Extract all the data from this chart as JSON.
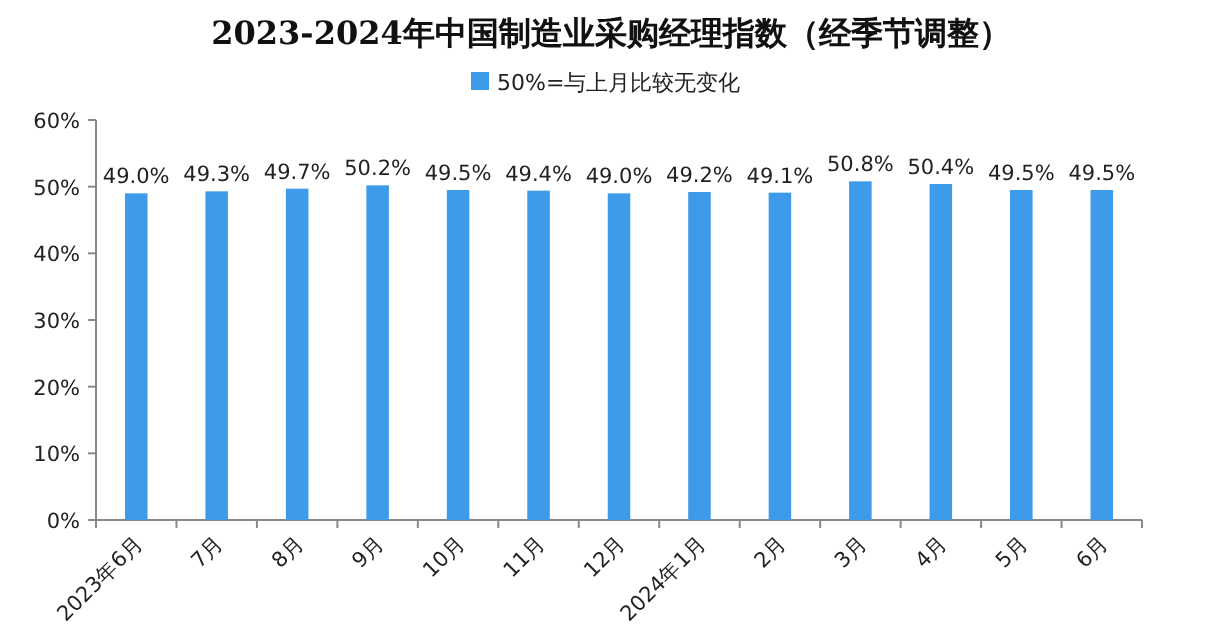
{
  "chart_data": {
    "type": "bar",
    "title": "2023-2024年中国制造业采购经理指数（经季节调整）",
    "categories": [
      "2023年6月",
      "7月",
      "8月",
      "9月",
      "10月",
      "11月",
      "12月",
      "2024年1月",
      "2月",
      "3月",
      "4月",
      "5月",
      "6月"
    ],
    "series": [
      {
        "name": "50%=与上月比较无变化",
        "color": "#3d9be9",
        "values": [
          49.0,
          49.3,
          49.7,
          50.2,
          49.5,
          49.4,
          49.0,
          49.2,
          49.1,
          50.8,
          50.4,
          49.5,
          49.5
        ],
        "value_labels": [
          "49.0%",
          "49.3%",
          "49.7%",
          "50.2%",
          "49.5%",
          "49.4%",
          "49.0%",
          "49.2%",
          "49.1%",
          "50.8%",
          "50.4%",
          "49.5%",
          "49.5%"
        ]
      }
    ],
    "ylim": [
      0,
      60
    ],
    "yticks": [
      {
        "value": 0,
        "label": "0%"
      },
      {
        "value": 10,
        "label": "10%"
      },
      {
        "value": 20,
        "label": "20%"
      },
      {
        "value": 30,
        "label": "30%"
      },
      {
        "value": 40,
        "label": "40%"
      },
      {
        "value": 50,
        "label": "50%"
      },
      {
        "value": 60,
        "label": "60%"
      }
    ],
    "legend": "top",
    "grid": false
  }
}
